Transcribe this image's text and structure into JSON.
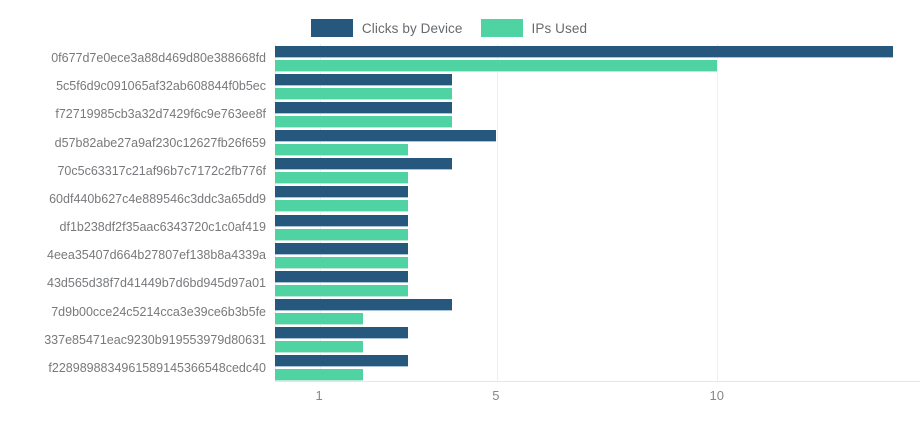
{
  "chart_data": {
    "type": "bar",
    "orientation": "horizontal",
    "title": "",
    "xlabel": "",
    "ylabel": "",
    "categories": [
      "0f677d7e0ece3a88d469d80e388668fd",
      "5c5f6d9c091065af32ab608844f0b5ec",
      "f72719985cb3a32d7429f6c9e763ee8f",
      "d57b82abe27a9af230c12627fb26f659",
      "70c5c63317c21af96b7c7172c2fb776f",
      "60df440b627c4e889546c3ddc3a65dd9",
      "df1b238df2f35aac6343720c1c0af419",
      "4eea35407d664b27807ef138b8a4339a",
      "43d565d38f7d41449b7d6bd945d97a01",
      "7d9b00cce24c5214cca3e39ce6b3b5fe",
      "337e85471eac9230b919553979d80631",
      "f2289898834961589145366548cedc40"
    ],
    "series": [
      {
        "name": "Clicks by Device",
        "color": "#25587C",
        "values": [
          14,
          4,
          4,
          5,
          4,
          3,
          3,
          3,
          3,
          4,
          3,
          3
        ]
      },
      {
        "name": "IPs Used",
        "color": "#4FD3A2",
        "values": [
          10,
          4,
          4,
          3,
          3,
          3,
          3,
          3,
          3,
          2,
          2,
          2
        ]
      }
    ],
    "x_ticks": [
      1,
      5,
      10
    ],
    "xlim": [
      0,
      14.6
    ],
    "grid": "vertical-only",
    "legend_position": "top-center"
  }
}
